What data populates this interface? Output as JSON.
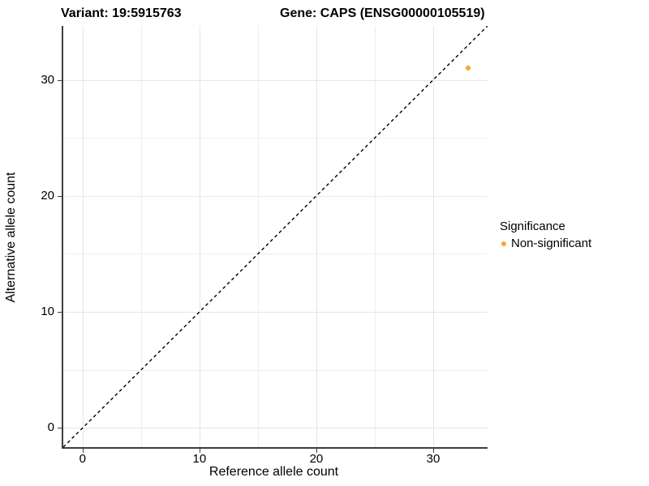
{
  "chart_data": {
    "type": "scatter",
    "title_left": "Variant: 19:5915763",
    "title_right": "Gene: CAPS (ENSG00000105519)",
    "xlabel": "Reference allele count",
    "ylabel": "Alternative allele count",
    "xlim": [
      -1.65,
      34.65
    ],
    "ylim": [
      -1.65,
      34.65
    ],
    "xticks": [
      0,
      10,
      20,
      30
    ],
    "yticks": [
      0,
      10,
      20,
      30
    ],
    "xticks_minor": [
      5,
      15,
      25
    ],
    "yticks_minor": [
      5,
      15,
      25
    ],
    "grid": true,
    "reference_line": {
      "slope": 1,
      "intercept": 0,
      "style": "dashed",
      "color": "#000000"
    },
    "points": [
      {
        "x": 33,
        "y": 31,
        "series": "Non-significant"
      }
    ],
    "legend": {
      "title": "Significance",
      "position": "right",
      "entries": [
        {
          "label": "Non-significant",
          "color": "#FBA33C"
        }
      ]
    },
    "colors": {
      "point": "#FBA33C",
      "axis_line": "#3d3d3d",
      "grid_major": "#e6e6e6",
      "grid_minor": "#ededed"
    }
  }
}
